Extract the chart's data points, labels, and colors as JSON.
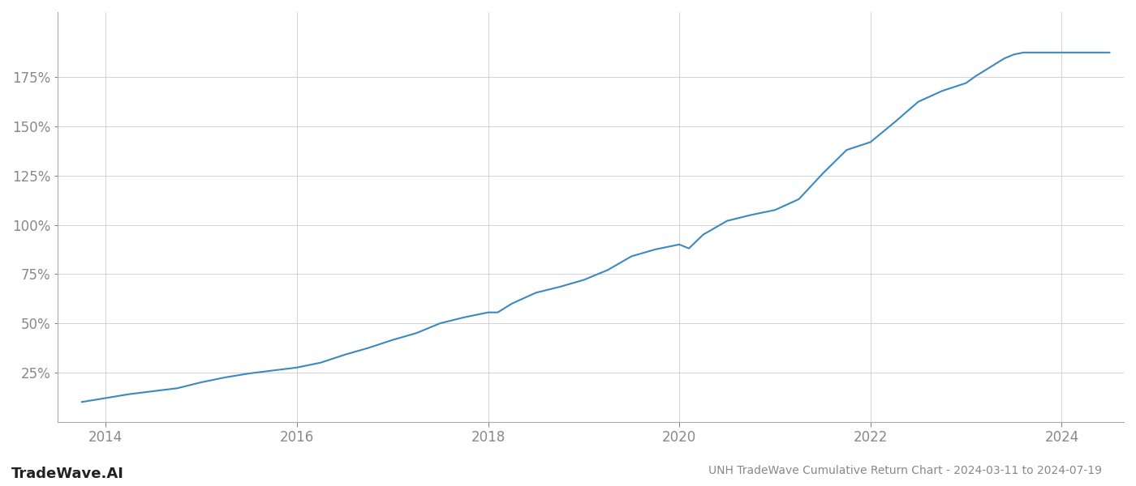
{
  "title": "UNH TradeWave Cumulative Return Chart - 2024-03-11 to 2024-07-19",
  "watermark": "TradeWave.AI",
  "line_color": "#3a8abf",
  "line_width": 1.5,
  "background_color": "#ffffff",
  "grid_color": "#cccccc",
  "tick_color": "#888888",
  "title_color": "#888888",
  "watermark_color": "#222222",
  "xlim": [
    2013.5,
    2024.65
  ],
  "ylim": [
    0.0,
    2.08
  ],
  "yticks": [
    0.25,
    0.5,
    0.75,
    1.0,
    1.25,
    1.5,
    1.75
  ],
  "ytick_labels": [
    "25%",
    "50%",
    "75%",
    "100%",
    "125%",
    "150%",
    "175%"
  ],
  "xticks": [
    2014,
    2016,
    2018,
    2020,
    2022,
    2024
  ],
  "data_x": [
    2013.75,
    2014.0,
    2014.25,
    2014.5,
    2014.75,
    2015.0,
    2015.25,
    2015.5,
    2015.75,
    2016.0,
    2016.25,
    2016.5,
    2016.75,
    2017.0,
    2017.25,
    2017.5,
    2017.75,
    2018.0,
    2018.1,
    2018.25,
    2018.5,
    2018.75,
    2019.0,
    2019.25,
    2019.5,
    2019.75,
    2020.0,
    2020.1,
    2020.25,
    2020.5,
    2020.75,
    2021.0,
    2021.25,
    2021.5,
    2021.75,
    2022.0,
    2022.25,
    2022.5,
    2022.75,
    2023.0,
    2023.1,
    2023.25,
    2023.4,
    2023.5,
    2023.6,
    2023.75,
    2023.9,
    2024.0,
    2024.2,
    2024.5
  ],
  "data_y": [
    0.1,
    0.12,
    0.14,
    0.155,
    0.17,
    0.2,
    0.225,
    0.245,
    0.26,
    0.275,
    0.3,
    0.34,
    0.375,
    0.415,
    0.45,
    0.5,
    0.53,
    0.555,
    0.555,
    0.6,
    0.655,
    0.685,
    0.72,
    0.77,
    0.84,
    0.875,
    0.9,
    0.88,
    0.95,
    1.02,
    1.05,
    1.075,
    1.13,
    1.26,
    1.38,
    1.42,
    1.52,
    1.625,
    1.68,
    1.72,
    1.755,
    1.8,
    1.845,
    1.865,
    1.875,
    1.875,
    1.875,
    1.875,
    1.875,
    1.875
  ]
}
